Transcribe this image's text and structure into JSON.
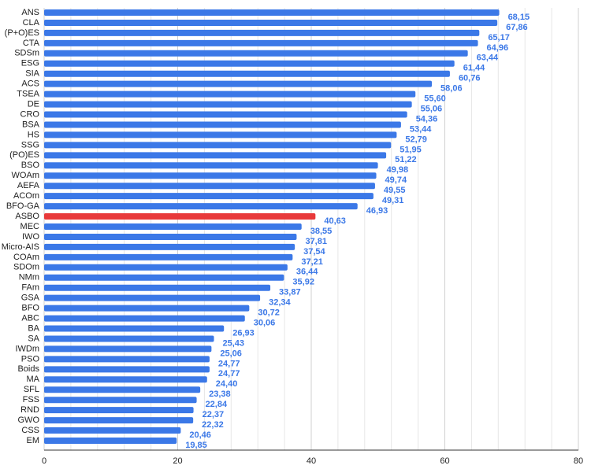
{
  "chart_data": {
    "type": "hbar",
    "categories": [
      "ANS",
      "CLA",
      "(P+O)ES",
      "CTA",
      "SDSm",
      "ESG",
      "SIA",
      "ACS",
      "TSEA",
      "DE",
      "CRO",
      "BSA",
      "HS",
      "SSG",
      "(PO)ES",
      "BSO",
      "WOAm",
      "AEFA",
      "ACOm",
      "BFO-GA",
      "ASBO",
      "MEC",
      "IWO",
      "Micro-AIS",
      "COAm",
      "SDOm",
      "NMm",
      "FAm",
      "GSA",
      "BFO",
      "ABC",
      "BA",
      "SA",
      "IWDm",
      "PSO",
      "Boids",
      "MA",
      "SFL",
      "FSS",
      "RND",
      "GWO",
      "CSS",
      "EM"
    ],
    "values": [
      68.15,
      67.86,
      65.17,
      64.96,
      63.44,
      61.44,
      60.76,
      58.06,
      55.6,
      55.06,
      54.36,
      53.44,
      52.79,
      51.95,
      51.22,
      49.98,
      49.74,
      49.55,
      49.31,
      46.93,
      40.63,
      38.55,
      37.81,
      37.54,
      37.21,
      36.44,
      35.92,
      33.87,
      32.34,
      30.72,
      30.06,
      26.93,
      25.43,
      25.06,
      24.77,
      24.77,
      24.4,
      23.38,
      22.84,
      22.37,
      22.32,
      20.46,
      19.85
    ],
    "value_labels": [
      "68,15",
      "67,86",
      "65,17",
      "64,96",
      "63,44",
      "61,44",
      "60,76",
      "58,06",
      "55,60",
      "55,06",
      "54,36",
      "53,44",
      "52,79",
      "51,95",
      "51,22",
      "49,98",
      "49,74",
      "49,55",
      "49,31",
      "46,93",
      "40,63",
      "38,55",
      "37,81",
      "37,54",
      "37,21",
      "36,44",
      "35,92",
      "33,87",
      "32,34",
      "30,72",
      "30,06",
      "26,93",
      "25,43",
      "25,06",
      "24,77",
      "24,77",
      "24,40",
      "23,38",
      "22,84",
      "22,37",
      "22,32",
      "20,46",
      "19,85"
    ],
    "colors": [
      "#3b78e7",
      "#3b78e7",
      "#3b78e7",
      "#3b78e7",
      "#3b78e7",
      "#3b78e7",
      "#3b78e7",
      "#3b78e7",
      "#3b78e7",
      "#3b78e7",
      "#3b78e7",
      "#3b78e7",
      "#3b78e7",
      "#3b78e7",
      "#3b78e7",
      "#3b78e7",
      "#3b78e7",
      "#3b78e7",
      "#3b78e7",
      "#3b78e7",
      "#e8393a",
      "#3b78e7",
      "#3b78e7",
      "#3b78e7",
      "#3b78e7",
      "#3b78e7",
      "#3b78e7",
      "#3b78e7",
      "#3b78e7",
      "#3b78e7",
      "#3b78e7",
      "#3b78e7",
      "#3b78e7",
      "#3b78e7",
      "#3b78e7",
      "#3b78e7",
      "#3b78e7",
      "#3b78e7",
      "#3b78e7",
      "#3b78e7",
      "#3b78e7",
      "#3b78e7",
      "#3b78e7"
    ],
    "label_color": "#3b78e7",
    "xlim": [
      0,
      80
    ],
    "xticks": [
      0,
      20,
      40,
      60,
      80
    ],
    "xminorticks": [
      4,
      8,
      12,
      16,
      24,
      28,
      32,
      36,
      44,
      48,
      52,
      56,
      64,
      68,
      72,
      76
    ],
    "grid": true
  }
}
